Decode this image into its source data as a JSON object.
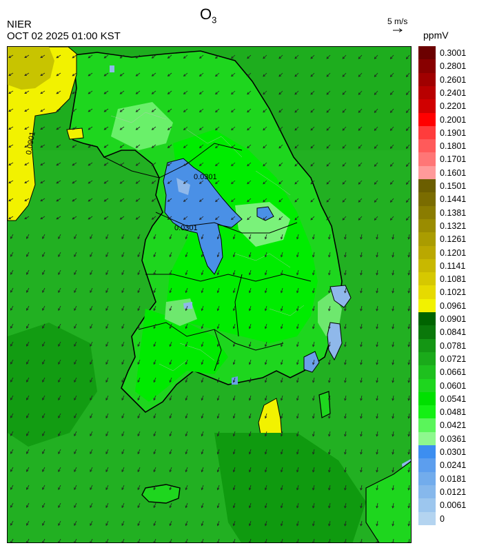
{
  "header": {
    "title_main": "O",
    "title_sub": "3",
    "org": "NIER",
    "datetime": "OCT 02 2025 01:00 KST",
    "wind_ref": "5 m/s",
    "unit": "ppmV"
  },
  "map": {
    "contour_labels": [
      "0.0901",
      "0.0301",
      "0.0301"
    ],
    "colors": {
      "sea_green": "#22b022",
      "land_green": "#1ed61e",
      "bright_green": "#00ee00",
      "dark_green": "#0c9a0c",
      "light_green": "#66f066",
      "blue": "#4a90e6",
      "light_blue": "#8fb8ea",
      "yellow": "#f2f200",
      "olive_yellow": "#c8c400"
    }
  },
  "legend": {
    "labels": [
      "0.3001",
      "0.2801",
      "0.2601",
      "0.2401",
      "0.2201",
      "0.2001",
      "0.1901",
      "0.1801",
      "0.1701",
      "0.1601",
      "0.1501",
      "0.1441",
      "0.1381",
      "0.1321",
      "0.1261",
      "0.1201",
      "0.1141",
      "0.1081",
      "0.1021",
      "0.0961",
      "0.0901",
      "0.0841",
      "0.0781",
      "0.0721",
      "0.0661",
      "0.0601",
      "0.0541",
      "0.0481",
      "0.0421",
      "0.0361",
      "0.0301",
      "0.0241",
      "0.0181",
      "0.0121",
      "0.0061",
      "0"
    ],
    "colors": [
      "#6b0000",
      "#880000",
      "#a00000",
      "#b80000",
      "#d00000",
      "#ff0000",
      "#ff3c3c",
      "#ff5a5a",
      "#ff7676",
      "#ff9a9a",
      "#6b5e00",
      "#7a6c00",
      "#8a7c00",
      "#9a8c00",
      "#aa9c00",
      "#baa800",
      "#c8b800",
      "#d6c800",
      "#e6da00",
      "#f2f200",
      "#006400",
      "#0a780a",
      "#149614",
      "#1aaa1a",
      "#1ec01e",
      "#1ed61e",
      "#00e000",
      "#14f014",
      "#5af55a",
      "#8ef88e",
      "#3c8ef0",
      "#5c9eee",
      "#72acec",
      "#86b8ec",
      "#9cc6ee",
      "#b4d4f0"
    ]
  }
}
